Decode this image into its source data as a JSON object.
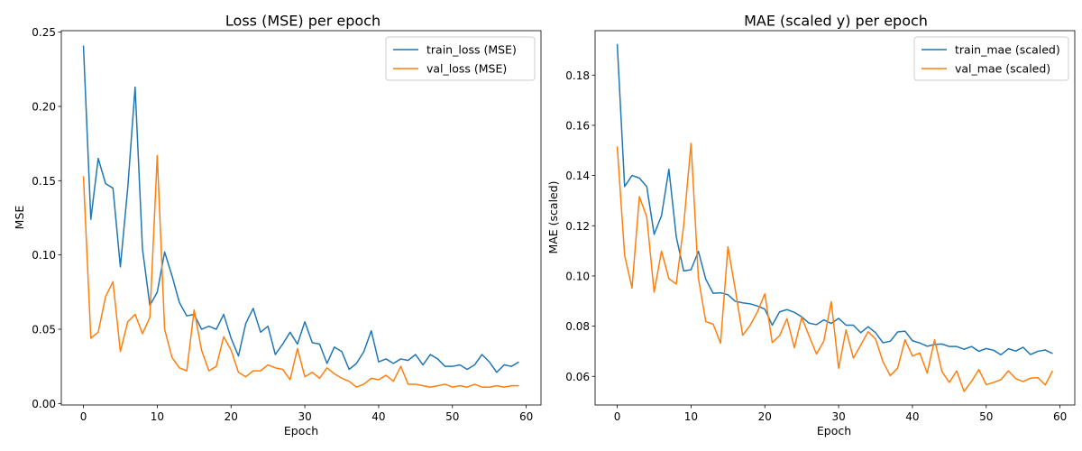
{
  "chart_data": [
    {
      "type": "line",
      "title": "Loss (MSE) per epoch",
      "xlabel": "Epoch",
      "ylabel": "MSE",
      "xlim": [
        -3,
        62
      ],
      "ylim": [
        -0.001,
        0.251
      ],
      "xticks": [
        0,
        10,
        20,
        30,
        40,
        50,
        60
      ],
      "yticks": [
        0.0,
        0.05,
        0.1,
        0.15,
        0.2,
        0.25
      ],
      "xtick_labels": [
        "0",
        "10",
        "20",
        "30",
        "40",
        "50",
        "60"
      ],
      "ytick_labels": [
        "0.00",
        "0.05",
        "0.10",
        "0.15",
        "0.20",
        "0.25"
      ],
      "grid": false,
      "legend": "top-right",
      "series": [
        {
          "name": "train_loss (MSE)",
          "color": "#1f77b4",
          "values": [
            0.241,
            0.124,
            0.165,
            0.148,
            0.145,
            0.092,
            0.145,
            0.213,
            0.104,
            0.066,
            0.075,
            0.102,
            0.086,
            0.068,
            0.059,
            0.06,
            0.05,
            0.052,
            0.05,
            0.06,
            0.044,
            0.032,
            0.054,
            0.064,
            0.048,
            0.052,
            0.033,
            0.04,
            0.048,
            0.04,
            0.055,
            0.041,
            0.04,
            0.027,
            0.038,
            0.035,
            0.023,
            0.027,
            0.035,
            0.049,
            0.028,
            0.03,
            0.027,
            0.03,
            0.029,
            0.033,
            0.026,
            0.033,
            0.03,
            0.025,
            0.025,
            0.026,
            0.023,
            0.026,
            0.033,
            0.028,
            0.021,
            0.026,
            0.025,
            0.028
          ]
        },
        {
          "name": "val_loss (MSE)",
          "color": "#ff7f0e",
          "values": [
            0.153,
            0.044,
            0.048,
            0.072,
            0.082,
            0.035,
            0.055,
            0.06,
            0.047,
            0.058,
            0.167,
            0.05,
            0.031,
            0.024,
            0.022,
            0.063,
            0.036,
            0.022,
            0.025,
            0.045,
            0.036,
            0.021,
            0.018,
            0.022,
            0.022,
            0.026,
            0.024,
            0.023,
            0.016,
            0.037,
            0.018,
            0.021,
            0.017,
            0.024,
            0.02,
            0.017,
            0.015,
            0.011,
            0.013,
            0.017,
            0.016,
            0.019,
            0.015,
            0.025,
            0.013,
            0.013,
            0.012,
            0.011,
            0.012,
            0.013,
            0.011,
            0.012,
            0.011,
            0.013,
            0.011,
            0.011,
            0.012,
            0.011,
            0.012,
            0.012
          ]
        }
      ]
    },
    {
      "type": "line",
      "title": "MAE (scaled y) per epoch",
      "xlabel": "Epoch",
      "ylabel": "MAE (scaled)",
      "xlim": [
        -3,
        62
      ],
      "ylim": [
        0.0486,
        0.1977
      ],
      "xticks": [
        0,
        10,
        20,
        30,
        40,
        50,
        60
      ],
      "yticks": [
        0.06,
        0.08,
        0.1,
        0.12,
        0.14,
        0.16,
        0.18
      ],
      "xtick_labels": [
        "0",
        "10",
        "20",
        "30",
        "40",
        "50",
        "60"
      ],
      "ytick_labels": [
        "0.06",
        "0.08",
        "0.10",
        "0.12",
        "0.14",
        "0.16",
        "0.18"
      ],
      "grid": false,
      "legend": "top-right",
      "series": [
        {
          "name": "train_mae (scaled)",
          "color": "#1f77b4",
          "values": [
            0.1924,
            0.1356,
            0.14,
            0.139,
            0.1356,
            0.1166,
            0.124,
            0.1425,
            0.1156,
            0.102,
            0.1025,
            0.1098,
            0.0987,
            0.0931,
            0.0933,
            0.0925,
            0.0899,
            0.0893,
            0.0889,
            0.088,
            0.0868,
            0.0804,
            0.0857,
            0.0866,
            0.0855,
            0.0837,
            0.0812,
            0.0806,
            0.0825,
            0.0811,
            0.0831,
            0.0804,
            0.0804,
            0.0774,
            0.0798,
            0.0774,
            0.0734,
            0.074,
            0.0777,
            0.078,
            0.0742,
            0.0733,
            0.072,
            0.0727,
            0.0729,
            0.0719,
            0.0719,
            0.0708,
            0.0719,
            0.07,
            0.0711,
            0.0704,
            0.0686,
            0.071,
            0.0701,
            0.0716,
            0.0687,
            0.07,
            0.0705,
            0.0691
          ]
        },
        {
          "name": "val_mae (scaled)",
          "color": "#ff7f0e",
          "values": [
            0.1516,
            0.1082,
            0.0952,
            0.1316,
            0.1235,
            0.0935,
            0.1099,
            0.0989,
            0.0968,
            0.12,
            0.1528,
            0.0991,
            0.0818,
            0.0808,
            0.0732,
            0.1116,
            0.0945,
            0.0764,
            0.0803,
            0.0857,
            0.0929,
            0.0735,
            0.0762,
            0.083,
            0.0714,
            0.0835,
            0.0761,
            0.0689,
            0.0741,
            0.0898,
            0.0632,
            0.0785,
            0.0673,
            0.0725,
            0.0778,
            0.0749,
            0.0659,
            0.0603,
            0.0633,
            0.0746,
            0.0681,
            0.0693,
            0.0613,
            0.0746,
            0.0619,
            0.0576,
            0.0622,
            0.054,
            0.058,
            0.0627,
            0.0567,
            0.0576,
            0.0587,
            0.0622,
            0.0591,
            0.0579,
            0.0593,
            0.0595,
            0.0566,
            0.0622
          ]
        }
      ]
    }
  ]
}
